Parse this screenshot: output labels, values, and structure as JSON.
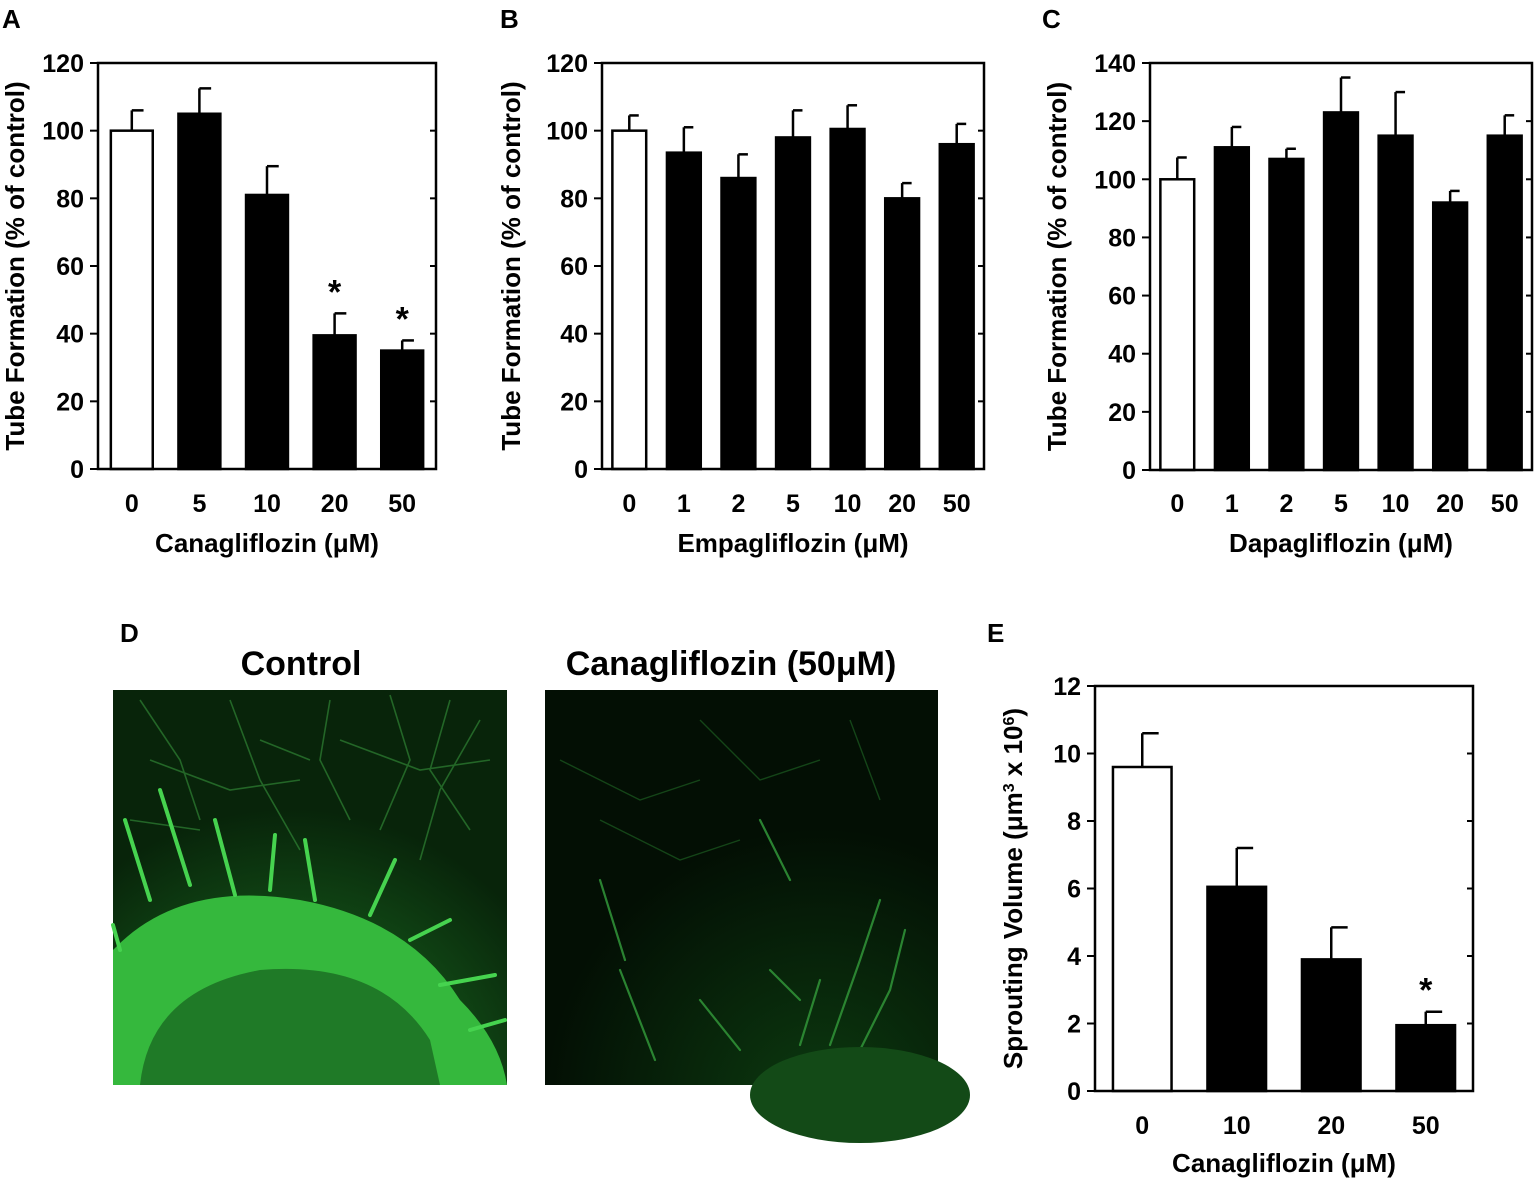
{
  "panel_letters": {
    "a": "A",
    "b": "B",
    "c": "C",
    "d": "D",
    "e": "E"
  },
  "micrographs": {
    "control_title": "Control",
    "treated_title": "Canagliflozin (50μM)"
  },
  "colors": {
    "control_bar": "#ffffff",
    "treated_bar": "#000000",
    "micrograph_green": "#3fd24a",
    "micrograph_background": "#061a08"
  },
  "chart_data": [
    {
      "id": "A",
      "type": "bar",
      "xlabel": "Canagliflozin (μM)",
      "ylabel": "Tube Formation (% of control)",
      "ylim": [
        0,
        120
      ],
      "yticks": [
        0,
        20,
        40,
        60,
        80,
        100,
        120
      ],
      "categories": [
        "0",
        "5",
        "10",
        "20",
        "50"
      ],
      "values": [
        100,
        105,
        81,
        39.5,
        35
      ],
      "errors": [
        6,
        7.5,
        8.5,
        6.5,
        3
      ],
      "significant": [
        "",
        "",
        "",
        "*",
        "*"
      ],
      "bar_fill": [
        "white",
        "black",
        "black",
        "black",
        "black"
      ],
      "grid": false
    },
    {
      "id": "B",
      "type": "bar",
      "xlabel": "Empagliflozin (μM)",
      "ylabel": "Tube Formation (% of control)",
      "ylim": [
        0,
        120
      ],
      "yticks": [
        0,
        20,
        40,
        60,
        80,
        100,
        120
      ],
      "categories": [
        "0",
        "1",
        "2",
        "5",
        "10",
        "20",
        "50"
      ],
      "values": [
        100,
        93.5,
        86,
        98,
        100.5,
        80,
        96
      ],
      "errors": [
        4.5,
        7.5,
        7,
        8,
        7,
        4.5,
        6
      ],
      "significant": [
        "",
        "",
        "",
        "",
        "",
        "",
        ""
      ],
      "bar_fill": [
        "white",
        "black",
        "black",
        "black",
        "black",
        "black",
        "black"
      ],
      "grid": false
    },
    {
      "id": "C",
      "type": "bar",
      "xlabel": "Dapagliflozin (μM)",
      "ylabel": "Tube Formation (% of control)",
      "ylim": [
        0,
        140
      ],
      "yticks": [
        0,
        20,
        40,
        60,
        80,
        100,
        120,
        140
      ],
      "categories": [
        "0",
        "1",
        "2",
        "5",
        "10",
        "20",
        "50"
      ],
      "values": [
        100,
        111,
        107,
        123,
        115,
        92,
        115
      ],
      "errors": [
        7.5,
        7,
        3.5,
        12,
        15,
        4,
        7
      ],
      "significant": [
        "",
        "",
        "",
        "",
        "",
        "",
        ""
      ],
      "bar_fill": [
        "white",
        "black",
        "black",
        "black",
        "black",
        "black",
        "black"
      ],
      "grid": false
    },
    {
      "id": "E",
      "type": "bar",
      "xlabel": "Canagliflozin (μM)",
      "ylabel_main": "Sprouting Volume (μm",
      "ylabel_exp1": "3",
      "ylabel_mid": " x 10",
      "ylabel_exp2": "6",
      "ylabel_end": ")",
      "ylim": [
        0,
        12
      ],
      "yticks": [
        0,
        2,
        4,
        6,
        8,
        10,
        12
      ],
      "categories": [
        "0",
        "10",
        "20",
        "50"
      ],
      "values": [
        9.6,
        6.05,
        3.9,
        1.95
      ],
      "errors": [
        1.0,
        1.15,
        0.95,
        0.4
      ],
      "significant": [
        "",
        "",
        "",
        "*"
      ],
      "bar_fill": [
        "white",
        "black",
        "black",
        "black"
      ],
      "grid": false
    }
  ]
}
